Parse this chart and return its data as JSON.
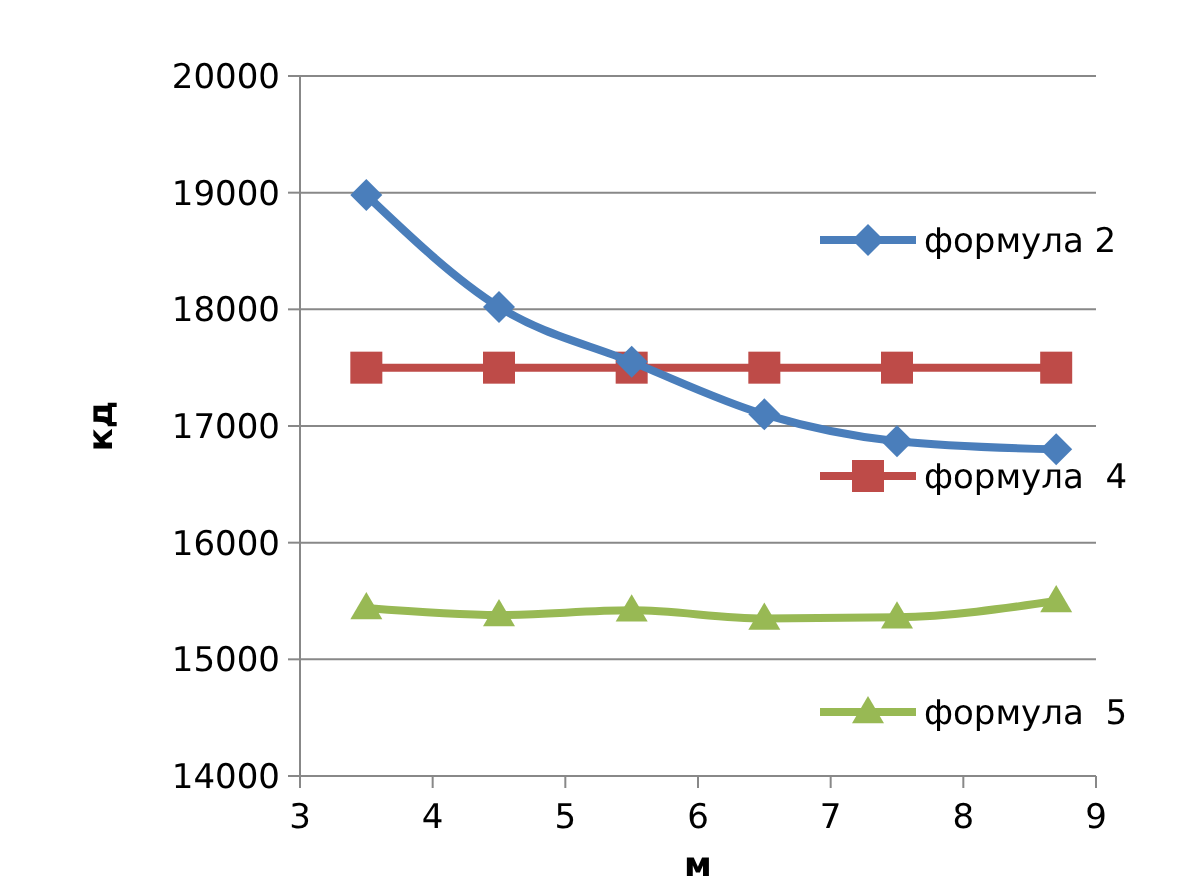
{
  "chart_data": {
    "type": "line",
    "xlabel": "м",
    "ylabel": "кд",
    "xlim": [
      3,
      9
    ],
    "xticks": [
      3,
      4,
      5,
      6,
      7,
      8,
      9
    ],
    "ylim": [
      14000,
      20000
    ],
    "yticks": [
      14000,
      15000,
      16000,
      17000,
      18000,
      19000,
      20000
    ],
    "grid": "y",
    "legend": "right",
    "x": [
      3.5,
      4.5,
      5.5,
      6.5,
      7.5,
      8.7
    ],
    "series": [
      {
        "name": "формула 2",
        "color": "#4a7ebb",
        "marker": "diamond",
        "values": [
          18980,
          18020,
          17550,
          17100,
          16870,
          16800
        ]
      },
      {
        "name": "формула  4",
        "color": "#be4b48",
        "marker": "square",
        "values": [
          17500,
          17500,
          17500,
          17500,
          17500,
          17500
        ]
      },
      {
        "name": "формула  5",
        "color": "#98b954",
        "marker": "triangle",
        "values": [
          15440,
          15380,
          15420,
          15350,
          15360,
          15500
        ]
      }
    ]
  }
}
